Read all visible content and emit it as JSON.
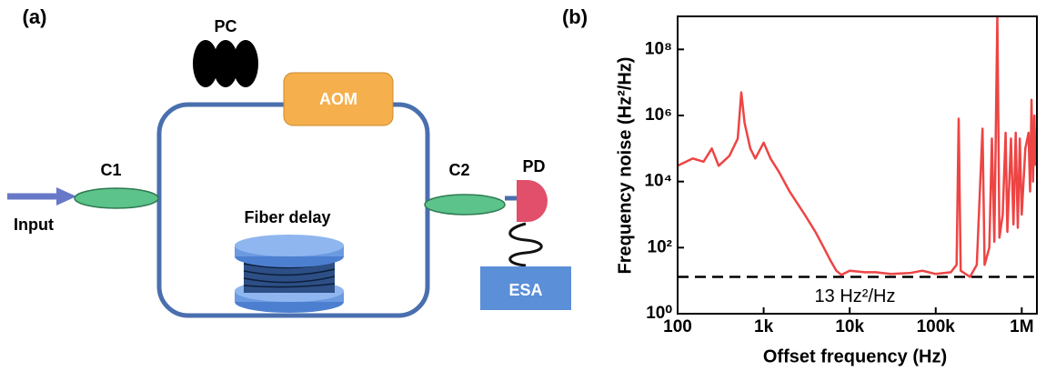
{
  "diagram": {
    "panel_label": "(a)",
    "labels": {
      "pc": "PC",
      "aom": "AOM",
      "c1": "C1",
      "c2": "C2",
      "pd": "PD",
      "input": "Input",
      "fiber": "Fiber delay",
      "esa": "ESA"
    }
  },
  "chart_data": {
    "type": "line",
    "panel_label": "(b)",
    "x_label": "Offset frequency (Hz)",
    "y_label": "Frequency noise (Hz²/Hz)",
    "x_log": true,
    "y_log": true,
    "xlim": [
      100,
      1500000
    ],
    "ylim": [
      1,
      1000000000
    ],
    "xticks": [
      100,
      {
        "value": 1000,
        "label": "1k"
      },
      {
        "value": 10000,
        "label": "10k"
      },
      {
        "value": 100000,
        "label": "100k"
      },
      {
        "value": 1000000,
        "label": "1M"
      }
    ],
    "yticks": [
      {
        "value": 1,
        "label": "10⁰"
      },
      {
        "value": 100,
        "label": "10²"
      },
      {
        "value": 10000,
        "label": "10⁴"
      },
      {
        "value": 1000000,
        "label": "10⁶"
      },
      {
        "value": 100000000,
        "label": "10⁸"
      }
    ],
    "reference_line": {
      "value": 13,
      "label": "13 Hz²/Hz"
    },
    "series": [
      {
        "color": "#ee4444",
        "x": [
          100,
          150,
          200,
          250,
          300,
          400,
          500,
          550,
          600,
          700,
          800,
          1000,
          1200,
          1500,
          2000,
          3000,
          4000,
          5000,
          6000,
          7000,
          8000,
          10000,
          15000,
          20000,
          30000,
          50000,
          70000,
          100000,
          150000,
          175000,
          185000,
          195000,
          250000,
          300000,
          350000,
          370000,
          420000,
          450000,
          480000,
          520000,
          550000,
          600000,
          650000,
          680000,
          750000,
          800000,
          850000,
          900000,
          950000,
          1000000,
          1100000,
          1200000,
          1250000,
          1300000,
          1350000,
          1400000,
          1450000
        ],
        "values": [
          30000,
          50000,
          40000,
          100000,
          30000,
          60000,
          200000,
          5000000,
          600000,
          100000,
          50000,
          150000,
          50000,
          20000,
          5000,
          1000,
          300,
          100,
          40,
          20,
          15,
          20,
          18,
          18,
          16,
          17,
          20,
          16,
          18,
          30,
          800000,
          20,
          13,
          30,
          400000,
          30,
          100,
          200000,
          150,
          1000000000,
          200,
          1000,
          300000,
          300,
          200000,
          500,
          300000,
          400,
          200000,
          1000,
          100000,
          300000,
          5000,
          3000000,
          10000,
          1000000,
          30000
        ]
      }
    ]
  }
}
